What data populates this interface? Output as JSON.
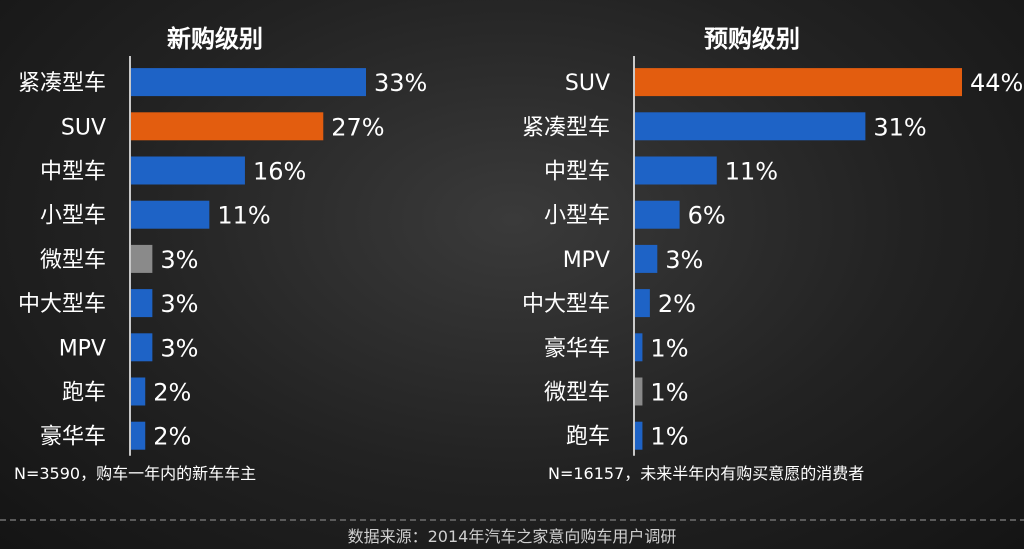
{
  "chart_data": [
    {
      "type": "bar",
      "orientation": "horizontal",
      "title": "新购级别",
      "categories": [
        "紧凑型车",
        "SUV",
        "中型车",
        "小型车",
        "微型车",
        "中大型车",
        "MPV",
        "跑车",
        "豪华车"
      ],
      "values": [
        33,
        27,
        16,
        11,
        3,
        3,
        3,
        2,
        2
      ],
      "value_labels": [
        "33%",
        "27%",
        "16%",
        "11%",
        "3%",
        "3%",
        "3%",
        "2%",
        "2%"
      ],
      "bar_colors": [
        "#1e63c6",
        "#e35d0f",
        "#1e63c6",
        "#1e63c6",
        "#8a8a8a",
        "#1e63c6",
        "#1e63c6",
        "#1e63c6",
        "#1e63c6"
      ],
      "note": "N=3590，购车一年内的新车车主"
    },
    {
      "type": "bar",
      "orientation": "horizontal",
      "title": "预购级别",
      "categories": [
        "SUV",
        "紧凑型车",
        "中型车",
        "小型车",
        "MPV",
        "中大型车",
        "豪华车",
        "微型车",
        "跑车"
      ],
      "values": [
        44,
        31,
        11,
        6,
        3,
        2,
        1,
        1,
        1
      ],
      "value_labels": [
        "44%",
        "31%",
        "11%",
        "6%",
        "3%",
        "2%",
        "1%",
        "1%",
        "1%"
      ],
      "bar_colors": [
        "#e35d0f",
        "#1e63c6",
        "#1e63c6",
        "#1e63c6",
        "#1e63c6",
        "#1e63c6",
        "#1e63c6",
        "#8a8a8a",
        "#1e63c6"
      ],
      "note": "N=16157，未来半年内有购买意愿的消费者"
    }
  ],
  "source": "数据来源：2014年汽车之家意向购车用户调研"
}
